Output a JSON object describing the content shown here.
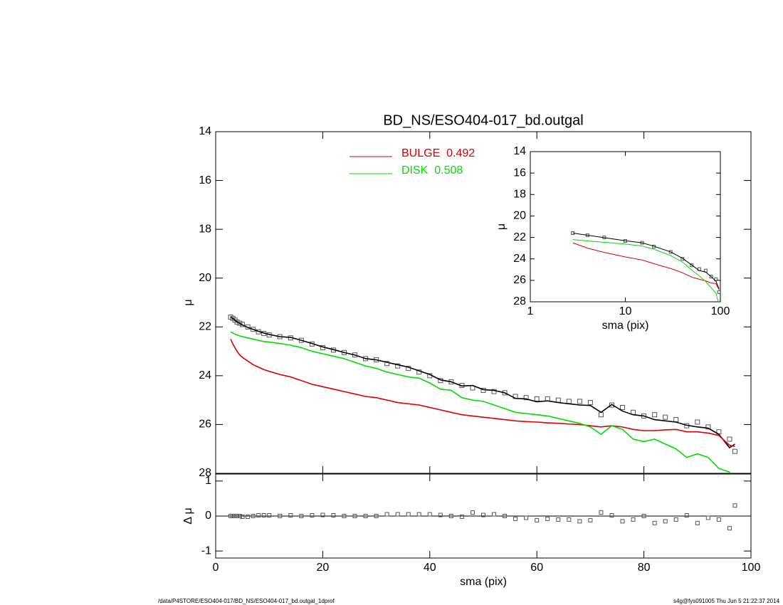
{
  "chart_data": [
    {
      "type": "line",
      "title": "BD_NS/ESO404-017_bd.outgal",
      "ylabel": "μ",
      "legend": "upper-center",
      "xlim": [
        0,
        100
      ],
      "ylim": [
        28,
        14
      ],
      "yticks": [
        14,
        16,
        18,
        20,
        22,
        24,
        26,
        28
      ],
      "x": [
        2.8,
        3.2,
        3.6,
        4,
        4.5,
        5,
        6,
        7,
        8,
        9,
        10,
        12,
        14,
        16,
        18,
        20,
        22,
        24,
        26,
        28,
        30,
        32,
        34,
        36,
        38,
        40,
        42,
        44,
        46,
        48,
        50,
        52,
        54,
        56,
        58,
        60,
        62,
        64,
        66,
        68,
        70,
        72,
        74,
        76,
        78,
        80,
        82,
        84,
        86,
        88,
        90,
        92,
        94,
        96,
        97
      ],
      "series": [
        {
          "marker": "square",
          "color": "#555555",
          "values": [
            21.6,
            21.65,
            21.72,
            21.8,
            21.85,
            21.9,
            22.0,
            22.1,
            22.2,
            22.27,
            22.33,
            22.4,
            22.45,
            22.55,
            22.7,
            22.85,
            22.95,
            23.05,
            23.15,
            23.3,
            23.35,
            23.5,
            23.6,
            23.7,
            23.85,
            24.0,
            24.2,
            24.25,
            24.4,
            24.5,
            24.6,
            24.65,
            24.7,
            24.85,
            24.9,
            24.95,
            24.95,
            25.0,
            25.05,
            25.05,
            25.1,
            25.6,
            25.2,
            25.3,
            25.5,
            25.65,
            25.6,
            25.7,
            25.8,
            26.05,
            25.9,
            26.1,
            26.3,
            26.6,
            27.1
          ]
        },
        {
          "marker": "none",
          "color": "#000000",
          "values": [
            21.6,
            21.65,
            21.72,
            21.8,
            21.85,
            21.92,
            22.02,
            22.1,
            22.18,
            22.25,
            22.31,
            22.4,
            22.43,
            22.55,
            22.68,
            22.82,
            22.93,
            23.05,
            23.15,
            23.3,
            23.35,
            23.45,
            23.55,
            23.65,
            23.8,
            23.95,
            24.17,
            24.25,
            24.42,
            24.4,
            24.57,
            24.6,
            24.7,
            24.93,
            24.95,
            25.07,
            25.03,
            25.1,
            25.15,
            25.2,
            25.22,
            25.5,
            25.18,
            25.45,
            25.6,
            25.65,
            25.8,
            25.85,
            25.9,
            26.03,
            26.1,
            26.15,
            26.4,
            26.95,
            26.8
          ]
        },
        {
          "name": "BULGE  0.492",
          "marker": "none",
          "color": "#dd0000",
          "values": [
            22.5,
            22.7,
            22.85,
            23.0,
            23.15,
            23.25,
            23.4,
            23.55,
            23.65,
            23.75,
            23.82,
            23.95,
            24.05,
            24.2,
            24.35,
            24.45,
            24.55,
            24.65,
            24.75,
            24.85,
            24.9,
            25.0,
            25.1,
            25.15,
            25.2,
            25.3,
            25.4,
            25.5,
            25.6,
            25.65,
            25.7,
            25.75,
            25.8,
            25.85,
            25.88,
            25.9,
            25.93,
            25.95,
            25.98,
            26.0,
            26.05,
            26.1,
            26.05,
            26.1,
            26.2,
            26.25,
            26.25,
            26.22,
            26.2,
            26.3,
            26.3,
            26.35,
            26.45,
            26.85,
            26.9
          ]
        },
        {
          "name": "DISK  0.508",
          "marker": "none",
          "color": "#00dd00",
          "values": [
            22.2,
            22.25,
            22.3,
            22.33,
            22.37,
            22.4,
            22.45,
            22.5,
            22.55,
            22.6,
            22.62,
            22.68,
            22.75,
            22.85,
            23.0,
            23.1,
            23.2,
            23.3,
            23.45,
            23.6,
            23.7,
            23.85,
            23.95,
            24.05,
            24.1,
            24.3,
            24.55,
            24.6,
            24.9,
            25.0,
            25.05,
            25.2,
            25.35,
            25.5,
            25.55,
            25.6,
            25.65,
            25.75,
            25.85,
            25.95,
            26.1,
            26.4,
            26.05,
            26.2,
            26.6,
            26.7,
            26.6,
            26.8,
            27.0,
            27.35,
            27.2,
            27.35,
            27.8,
            27.95,
            28.3
          ]
        }
      ]
    },
    {
      "type": "scatter",
      "xlabel": "sma (pix)",
      "ylabel": "Δ μ",
      "xlim": [
        0,
        100
      ],
      "xticks": [
        0,
        20,
        40,
        60,
        80,
        100
      ],
      "ylim": [
        -1.2,
        1.2
      ],
      "yticks": [
        -1,
        0,
        1
      ],
      "color": "#555555",
      "x": [
        2.8,
        3.2,
        3.6,
        4,
        4.5,
        5,
        6,
        7,
        8,
        9,
        10,
        12,
        14,
        16,
        18,
        20,
        22,
        24,
        26,
        28,
        30,
        32,
        34,
        36,
        38,
        40,
        42,
        44,
        46,
        48,
        50,
        52,
        54,
        56,
        58,
        60,
        62,
        64,
        66,
        68,
        70,
        72,
        74,
        76,
        78,
        80,
        82,
        84,
        86,
        88,
        90,
        92,
        94,
        96,
        97
      ],
      "values": [
        0,
        0,
        0,
        0,
        0,
        -0.02,
        -0.02,
        0,
        0.02,
        0.02,
        0.02,
        0,
        0.02,
        0,
        0.02,
        0.03,
        0.02,
        0,
        0,
        0,
        0,
        0.05,
        0.05,
        0.05,
        0.05,
        0.05,
        0.03,
        0,
        -0.02,
        0.1,
        0.03,
        0.05,
        0,
        -0.08,
        -0.05,
        -0.12,
        -0.08,
        -0.1,
        -0.1,
        -0.15,
        -0.12,
        0.1,
        0.02,
        -0.15,
        -0.1,
        0,
        -0.2,
        -0.15,
        -0.1,
        0.02,
        -0.2,
        -0.05,
        -0.1,
        -0.35,
        0.3
      ]
    },
    {
      "type": "line",
      "xlabel": "sma (pix)",
      "ylabel": "μ",
      "xscale": "log",
      "xlim": [
        1,
        100
      ],
      "xticks": [
        1,
        10,
        100
      ],
      "ylim": [
        28,
        14
      ],
      "yticks": [
        14,
        16,
        18,
        20,
        22,
        24,
        26,
        28
      ],
      "x": [
        2.8,
        4,
        6,
        10,
        15,
        20,
        30,
        40,
        50,
        60,
        70,
        80,
        90,
        97
      ],
      "series": [
        {
          "marker": "square",
          "color": "#555555",
          "values": [
            21.6,
            21.8,
            22.0,
            22.33,
            22.5,
            22.85,
            23.35,
            24.0,
            24.6,
            24.95,
            25.1,
            25.65,
            25.9,
            27.1
          ]
        },
        {
          "marker": "none",
          "color": "#000000",
          "values": [
            21.6,
            21.8,
            22.02,
            22.31,
            22.5,
            22.82,
            23.35,
            23.95,
            24.57,
            25.1,
            25.22,
            25.65,
            26.1,
            26.8
          ]
        },
        {
          "marker": "none",
          "color": "#dd0000",
          "values": [
            22.5,
            23.0,
            23.4,
            23.82,
            24.1,
            24.45,
            24.9,
            25.3,
            25.7,
            25.9,
            26.05,
            26.25,
            26.3,
            26.9
          ]
        },
        {
          "marker": "none",
          "color": "#00dd00",
          "values": [
            22.2,
            22.33,
            22.45,
            22.62,
            22.8,
            23.1,
            23.7,
            24.3,
            25.05,
            25.6,
            26.1,
            26.7,
            27.2,
            28.3
          ]
        }
      ]
    }
  ],
  "footer": {
    "left": "/data/P4STORE/ESO404-017/BD_NS/ESO404-017_bd.outgal_1dprof",
    "right": "s4g@fys091005  Thu Jun  5 21:22:37 2014"
  }
}
